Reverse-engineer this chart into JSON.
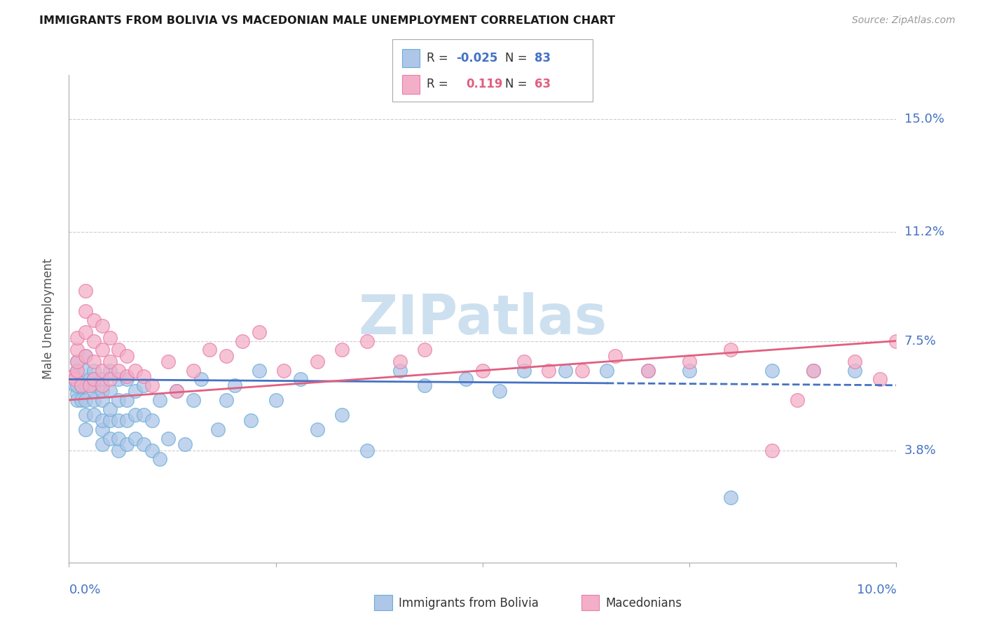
{
  "title": "IMMIGRANTS FROM BOLIVIA VS MACEDONIAN MALE UNEMPLOYMENT CORRELATION CHART",
  "source": "Source: ZipAtlas.com",
  "ylabel": "Male Unemployment",
  "ytick_labels": [
    "3.8%",
    "7.5%",
    "11.2%",
    "15.0%"
  ],
  "ytick_values": [
    0.038,
    0.075,
    0.112,
    0.15
  ],
  "xmin": 0.0,
  "xmax": 0.1,
  "ymin": 0.0,
  "ymax": 0.165,
  "color_blue_fill": "#aec6e8",
  "color_blue_edge": "#6aaed6",
  "color_pink_fill": "#f4afc8",
  "color_pink_edge": "#e87da8",
  "color_blue_line": "#4472c4",
  "color_pink_line": "#e06080",
  "color_title": "#1a1a1a",
  "color_source": "#999999",
  "color_axis_blue": "#4472c4",
  "color_grid": "#cccccc",
  "watermark_color": "#cde0f0",
  "blue_scatter_x": [
    0.0005,
    0.0007,
    0.001,
    0.001,
    0.001,
    0.001,
    0.001,
    0.0015,
    0.0015,
    0.002,
    0.002,
    0.002,
    0.002,
    0.002,
    0.002,
    0.0025,
    0.003,
    0.003,
    0.003,
    0.003,
    0.003,
    0.003,
    0.004,
    0.004,
    0.004,
    0.004,
    0.004,
    0.004,
    0.005,
    0.005,
    0.005,
    0.005,
    0.005,
    0.006,
    0.006,
    0.006,
    0.006,
    0.006,
    0.007,
    0.007,
    0.007,
    0.007,
    0.008,
    0.008,
    0.008,
    0.009,
    0.009,
    0.009,
    0.01,
    0.01,
    0.011,
    0.011,
    0.012,
    0.013,
    0.014,
    0.015,
    0.016,
    0.018,
    0.019,
    0.02,
    0.022,
    0.023,
    0.025,
    0.028,
    0.03,
    0.033,
    0.036,
    0.04,
    0.043,
    0.048,
    0.052,
    0.055,
    0.06,
    0.065,
    0.07,
    0.075,
    0.08,
    0.085,
    0.09,
    0.095
  ],
  "blue_scatter_y": [
    0.063,
    0.06,
    0.057,
    0.055,
    0.06,
    0.065,
    0.068,
    0.055,
    0.06,
    0.045,
    0.05,
    0.055,
    0.06,
    0.065,
    0.07,
    0.062,
    0.05,
    0.055,
    0.058,
    0.06,
    0.062,
    0.065,
    0.04,
    0.045,
    0.048,
    0.055,
    0.058,
    0.062,
    0.042,
    0.048,
    0.052,
    0.058,
    0.065,
    0.038,
    0.042,
    0.048,
    0.055,
    0.062,
    0.04,
    0.048,
    0.055,
    0.062,
    0.042,
    0.05,
    0.058,
    0.04,
    0.05,
    0.06,
    0.038,
    0.048,
    0.035,
    0.055,
    0.042,
    0.058,
    0.04,
    0.055,
    0.062,
    0.045,
    0.055,
    0.06,
    0.048,
    0.065,
    0.055,
    0.062,
    0.045,
    0.05,
    0.038,
    0.065,
    0.06,
    0.062,
    0.058,
    0.065,
    0.065,
    0.065,
    0.065,
    0.065,
    0.022,
    0.065,
    0.065,
    0.065
  ],
  "pink_scatter_x": [
    0.0005,
    0.0007,
    0.001,
    0.001,
    0.001,
    0.001,
    0.0015,
    0.002,
    0.002,
    0.002,
    0.002,
    0.0025,
    0.003,
    0.003,
    0.003,
    0.003,
    0.004,
    0.004,
    0.004,
    0.004,
    0.005,
    0.005,
    0.005,
    0.006,
    0.006,
    0.007,
    0.007,
    0.008,
    0.009,
    0.01,
    0.012,
    0.013,
    0.015,
    0.017,
    0.019,
    0.021,
    0.023,
    0.026,
    0.03,
    0.033,
    0.036,
    0.04,
    0.043,
    0.05,
    0.055,
    0.058,
    0.062,
    0.066,
    0.07,
    0.075,
    0.08,
    0.085,
    0.088,
    0.09,
    0.095,
    0.098,
    0.1
  ],
  "pink_scatter_y": [
    0.063,
    0.062,
    0.065,
    0.068,
    0.072,
    0.076,
    0.06,
    0.07,
    0.078,
    0.085,
    0.092,
    0.06,
    0.062,
    0.068,
    0.075,
    0.082,
    0.06,
    0.065,
    0.072,
    0.08,
    0.062,
    0.068,
    0.076,
    0.065,
    0.072,
    0.063,
    0.07,
    0.065,
    0.063,
    0.06,
    0.068,
    0.058,
    0.065,
    0.072,
    0.07,
    0.075,
    0.078,
    0.065,
    0.068,
    0.072,
    0.075,
    0.068,
    0.072,
    0.065,
    0.068,
    0.065,
    0.065,
    0.07,
    0.065,
    0.068,
    0.072,
    0.038,
    0.055,
    0.065,
    0.068,
    0.062,
    0.075
  ]
}
